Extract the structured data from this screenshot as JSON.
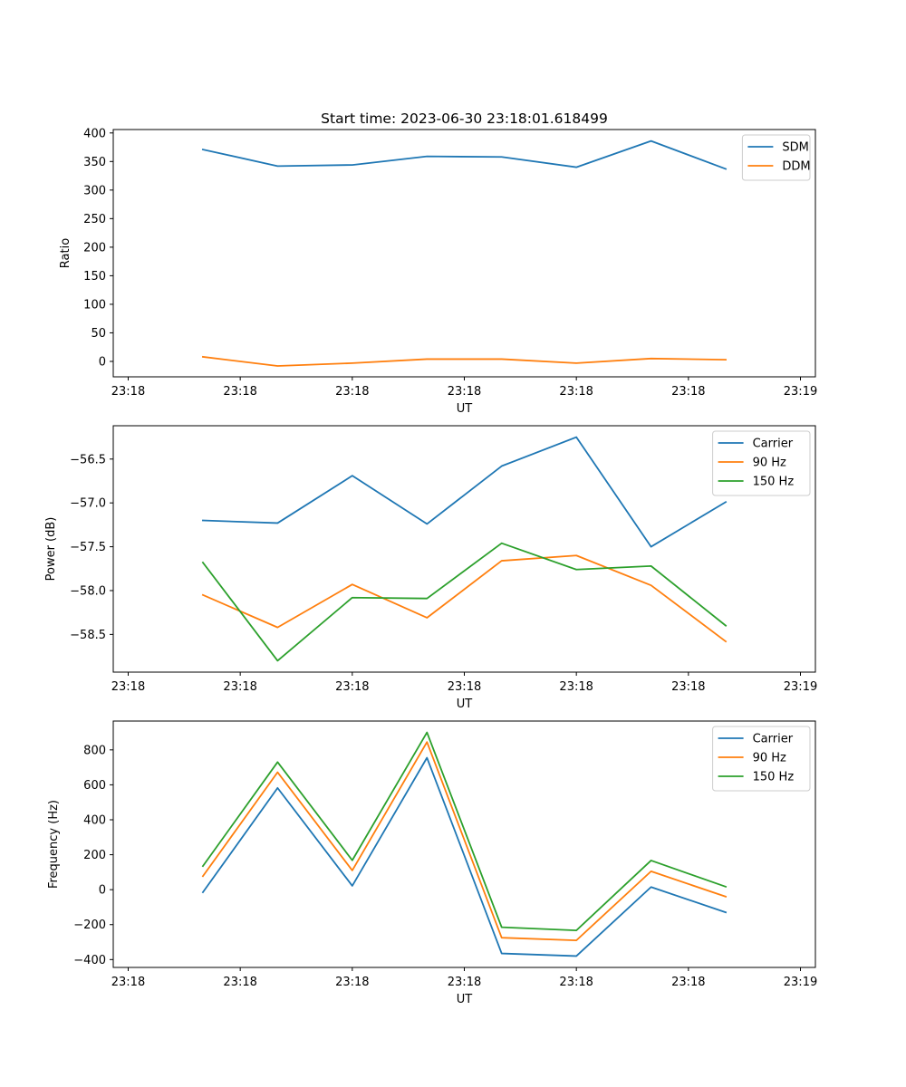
{
  "figure_title": "Start time: 2023-06-30 23:18:01.618499",
  "colors": {
    "blue": "#1f77b4",
    "orange": "#ff7f0e",
    "green": "#2ca02c"
  },
  "chart_data": [
    {
      "type": "line",
      "xlabel": "UT",
      "ylabel": "Ratio",
      "x_tick_labels": [
        "23:18",
        "23:18",
        "23:18",
        "23:18",
        "23:18",
        "23:18",
        "23:19"
      ],
      "y_ticks": [
        0,
        50,
        100,
        150,
        200,
        250,
        300,
        350,
        400
      ],
      "y_tick_labels": [
        "0",
        "50",
        "100",
        "150",
        "200",
        "250",
        "300",
        "350",
        "400"
      ],
      "ylim": [
        -27,
        406
      ],
      "grid": false,
      "legend": "top-right",
      "x_index": [
        1,
        2,
        3,
        4,
        5,
        6,
        7,
        8
      ],
      "series": [
        {
          "name": "SDM",
          "color": "#1f77b4",
          "values": [
            371,
            342,
            344,
            359,
            358,
            340,
            386,
            337
          ]
        },
        {
          "name": "DDM",
          "color": "#ff7f0e",
          "values": [
            8,
            -8,
            -3,
            4,
            4,
            -3,
            5,
            3
          ]
        }
      ]
    },
    {
      "type": "line",
      "xlabel": "UT",
      "ylabel": "Power (dB)",
      "x_tick_labels": [
        "23:18",
        "23:18",
        "23:18",
        "23:18",
        "23:18",
        "23:18",
        "23:19"
      ],
      "y_ticks": [
        -58.5,
        -58.0,
        -57.5,
        -57.0,
        -56.5
      ],
      "y_tick_labels": [
        "−58.5",
        "−58.0",
        "−57.5",
        "−57.0",
        "−56.5"
      ],
      "ylim": [
        -58.93,
        -56.12
      ],
      "grid": false,
      "legend": "top-right",
      "x_index": [
        1,
        2,
        3,
        4,
        5,
        6,
        7,
        8
      ],
      "series": [
        {
          "name": "Carrier",
          "color": "#1f77b4",
          "values": [
            -57.2,
            -57.23,
            -56.69,
            -57.24,
            -56.58,
            -56.25,
            -57.5,
            -56.99
          ]
        },
        {
          "name": "90 Hz",
          "color": "#ff7f0e",
          "values": [
            -58.05,
            -58.42,
            -57.93,
            -58.31,
            -57.66,
            -57.6,
            -57.94,
            -58.58
          ]
        },
        {
          "name": "150 Hz",
          "color": "#2ca02c",
          "values": [
            -57.68,
            -58.8,
            -58.08,
            -58.09,
            -57.46,
            -57.76,
            -57.72,
            -58.4
          ]
        }
      ]
    },
    {
      "type": "line",
      "xlabel": "UT",
      "ylabel": "Frequency (Hz)",
      "x_tick_labels": [
        "23:18",
        "23:18",
        "23:18",
        "23:18",
        "23:18",
        "23:18",
        "23:19"
      ],
      "y_ticks": [
        -400,
        -200,
        0,
        200,
        400,
        600,
        800
      ],
      "y_tick_labels": [
        "−400",
        "−200",
        "0",
        "200",
        "400",
        "600",
        "800"
      ],
      "ylim": [
        -445,
        965
      ],
      "grid": false,
      "legend": "top-right",
      "x_index": [
        1,
        2,
        3,
        4,
        5,
        6,
        7,
        8
      ],
      "series": [
        {
          "name": "Carrier",
          "color": "#1f77b4",
          "values": [
            -15,
            582,
            22,
            755,
            -365,
            -380,
            15,
            -130
          ]
        },
        {
          "name": "90 Hz",
          "color": "#ff7f0e",
          "values": [
            77,
            672,
            110,
            845,
            -275,
            -290,
            105,
            -40
          ]
        },
        {
          "name": "150 Hz",
          "color": "#2ca02c",
          "values": [
            135,
            730,
            168,
            900,
            -215,
            -233,
            167,
            17
          ]
        }
      ]
    }
  ]
}
